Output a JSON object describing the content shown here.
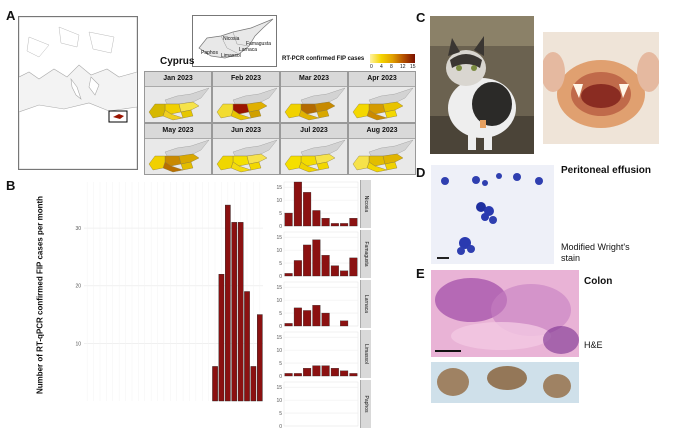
{
  "panels": {
    "A": {
      "letter": "A",
      "country_label": "Cyprus",
      "legend_title": "RT-PCR confirmed FIP cases",
      "legend_ticks": [
        "0",
        "4",
        "8",
        "12",
        "15"
      ],
      "inset_region_labels": [
        "Nicosia",
        "Famagusta",
        "Larnaca",
        "Limassol",
        "Paphos"
      ],
      "months": [
        {
          "label": "Jan 2023",
          "fills": [
            "#f1d000",
            "#f6e34a",
            "#e6c700",
            "#f0cf20",
            "#d6b800"
          ]
        },
        {
          "label": "Feb 2023",
          "fills": [
            "#9b1400",
            "#e0b000",
            "#d0a000",
            "#e8c400",
            "#f2dc30"
          ]
        },
        {
          "label": "Mar 2023",
          "fills": [
            "#b36a00",
            "#c78a00",
            "#d8a800",
            "#e1b300",
            "#f1d200"
          ]
        },
        {
          "label": "Apr 2023",
          "fills": [
            "#d59b00",
            "#e8c300",
            "#f3d800",
            "#cc8a00",
            "#f4d800"
          ]
        },
        {
          "label": "May 2023",
          "fills": [
            "#c98900",
            "#d9a800",
            "#e3bd00",
            "#b96f00",
            "#f1d000"
          ]
        },
        {
          "label": "Jun 2023",
          "fills": [
            "#f4e000",
            "#f6e24d",
            "#f2d800",
            "#f3db10",
            "#efd600"
          ]
        },
        {
          "label": "Jul 2023",
          "fills": [
            "#f3dc00",
            "#f6e34a",
            "#f2d700",
            "#f0d400",
            "#f5df00"
          ]
        },
        {
          "label": "Aug 2023",
          "fills": [
            "#e2bd00",
            "#e0b400",
            "#f0d200",
            "#f2d700",
            "#f6e24a"
          ]
        }
      ]
    },
    "B": {
      "letter": "B",
      "y_axis_title": "Number of RT-qPCR confirmed FIP cases per month"
    },
    "C": {
      "letter": "C"
    },
    "D": {
      "letter": "D",
      "title": "Peritoneal effusion",
      "stain_label": "Modified Wright's stain"
    },
    "E": {
      "letter": "E",
      "title": "Colon",
      "stain_label": "H&E"
    }
  },
  "chart_data": [
    {
      "type": "bar",
      "title": "",
      "xlabel": "",
      "ylabel": "Number of RT-qPCR confirmed FIP cases per month",
      "yticks": [
        10,
        20,
        30
      ],
      "values": [
        0,
        0,
        0,
        0,
        0,
        0,
        0,
        0,
        0,
        0,
        0,
        0,
        0,
        0,
        0,
        0,
        0,
        0,
        0,
        0,
        6,
        22,
        34,
        31,
        31,
        19,
        6,
        15
      ],
      "color": "#8b1111"
    },
    {
      "type": "bar",
      "facet": "Nicosia",
      "yticks": [
        0,
        5,
        10,
        15
      ],
      "ylim": [
        0,
        17
      ],
      "values": [
        5,
        17,
        13,
        6,
        3,
        1,
        1,
        3
      ],
      "color": "#8b1111"
    },
    {
      "type": "bar",
      "facet": "Famagusta",
      "yticks": [
        0,
        5,
        10,
        15
      ],
      "ylim": [
        0,
        17
      ],
      "values": [
        1,
        6,
        12,
        14,
        8,
        4,
        2,
        7
      ],
      "color": "#8b1111"
    },
    {
      "type": "bar",
      "facet": "Larnaca",
      "yticks": [
        0,
        5,
        10,
        15
      ],
      "ylim": [
        0,
        17
      ],
      "values": [
        1,
        7,
        6,
        8,
        5,
        0,
        2,
        0
      ],
      "color": "#8b1111"
    },
    {
      "type": "bar",
      "facet": "Limassol",
      "yticks": [
        0,
        5,
        10,
        15
      ],
      "ylim": [
        0,
        17
      ],
      "values": [
        1,
        1,
        3,
        4,
        4,
        3,
        2,
        1
      ],
      "color": "#8b1111"
    },
    {
      "type": "bar",
      "facet": "Paphos",
      "yticks": [
        0,
        5,
        10,
        15
      ],
      "ylim": [
        0,
        17
      ],
      "values": [],
      "color": "#8b1111"
    }
  ]
}
